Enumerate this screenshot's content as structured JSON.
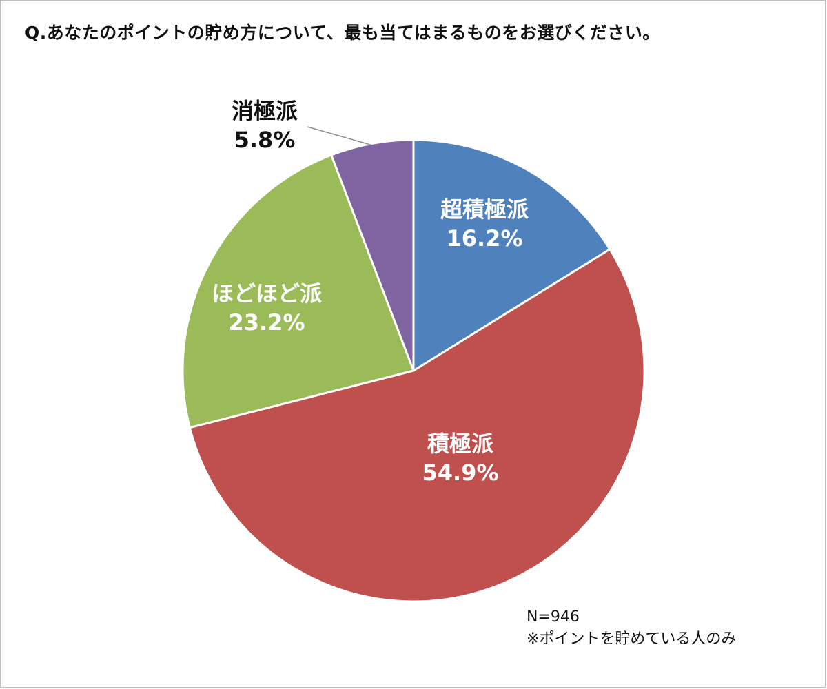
{
  "question": "Q.あなたのポイントの貯め方について、最も当てはまるものをお選びください。",
  "chart_data": {
    "type": "pie",
    "title": "Q.あなたのポイントの貯め方について、最も当てはまるものをお選びください。",
    "slices": [
      {
        "label": "超積極派",
        "value": 16.2,
        "value_label": "16.2%",
        "color": "#4f81bd",
        "label_color": "#ffffff"
      },
      {
        "label": "積極派",
        "value": 54.9,
        "value_label": "54.9%",
        "color": "#c0504d",
        "label_color": "#ffffff"
      },
      {
        "label": "ほどほど派",
        "value": 23.2,
        "value_label": "23.2%",
        "color": "#9bbb59",
        "label_color": "#ffffff"
      },
      {
        "label": "消極派",
        "value": 5.8,
        "value_label": "5.8%",
        "color": "#8064a2",
        "label_color": "#111111"
      }
    ],
    "start": "12 o'clock",
    "direction": "clockwise",
    "outside_label_slice": "消極派"
  },
  "note": {
    "sample_size": "N=946",
    "footnote": "※ポイントを貯めている人のみ"
  }
}
